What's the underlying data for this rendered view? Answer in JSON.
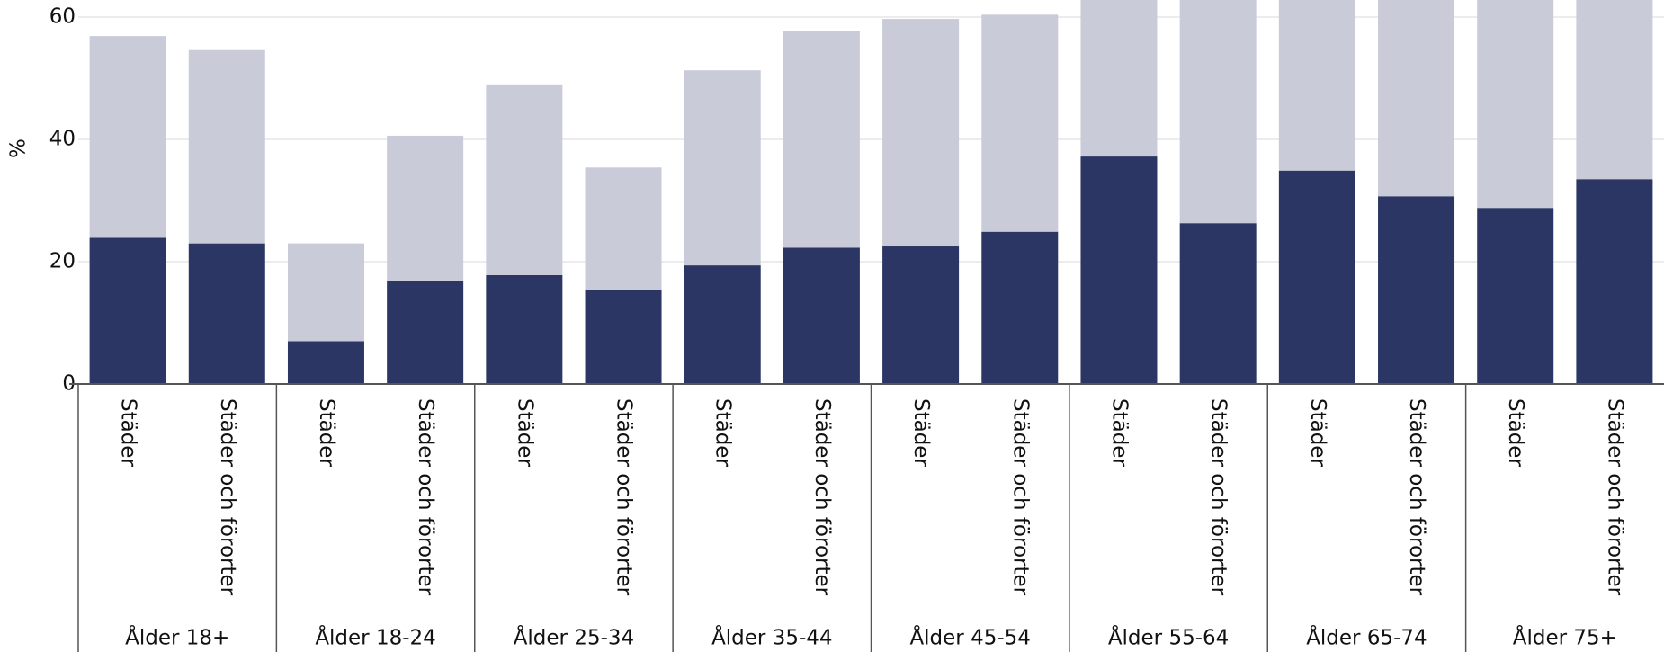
{
  "chart_data": {
    "type": "stacked-bar",
    "y_label": "%",
    "groups": [
      "Ålder 18+",
      "Ålder 18-24",
      "Ålder 25-34",
      "Ålder 35-44",
      "Ålder 45-54",
      "Ålder 55-64",
      "Ålder 65-74",
      "Ålder 75+"
    ],
    "categories": [
      "Städer",
      "Städer och förorter",
      "Städer",
      "Städer och förorter",
      "Städer",
      "Städer och förorter",
      "Städer",
      "Städer och förorter",
      "Städer",
      "Städer och förorter",
      "Städer",
      "Städer och förorter",
      "Städer",
      "Städer och förorter",
      "Städer",
      "Städer och förorter"
    ],
    "series": [
      {
        "color": "#2b3664",
        "values": [
          23.9,
          23.0,
          7.0,
          16.9,
          17.8,
          15.3,
          19.4,
          22.3,
          22.5,
          24.9,
          37.2,
          26.3,
          34.9,
          30.7,
          28.8,
          33.5
        ]
      },
      {
        "color": "#c9cbd8",
        "values": [
          33.0,
          31.6,
          16.0,
          23.7,
          31.2,
          20.1,
          31.9,
          35.4,
          37.2,
          35.5,
          27.0,
          38.0,
          30.0,
          35.0,
          36.0,
          32.0
        ]
      }
    ],
    "ylim": [
      0,
      62.8
    ],
    "yticks": [
      0,
      20,
      40,
      60
    ],
    "grid": true
  }
}
